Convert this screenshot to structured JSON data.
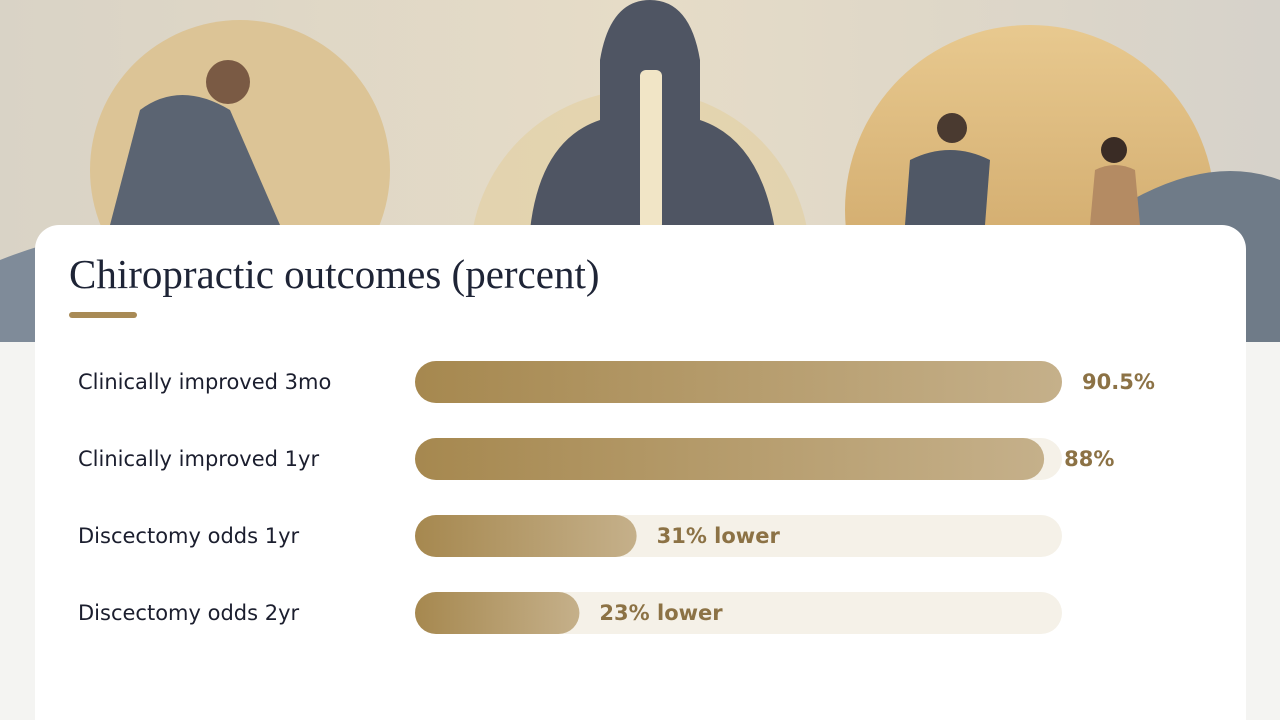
{
  "chart_data": {
    "type": "bar",
    "orientation": "horizontal",
    "title": "Chiropractic outcomes (percent)",
    "categories": [
      "Clinically improved 3mo",
      "Clinically improved 1yr",
      "Discectomy odds 1yr",
      "Discectomy odds 2yr"
    ],
    "values": [
      90.5,
      88,
      31,
      23
    ],
    "value_labels": [
      "90.5%",
      "88%",
      "31% lower",
      "23% lower"
    ],
    "xlim": [
      0,
      90.5
    ],
    "color": "#a88a55"
  }
}
